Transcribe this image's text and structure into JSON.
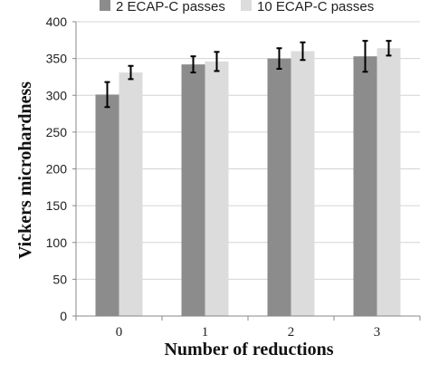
{
  "chart_data": {
    "type": "bar",
    "categories": [
      "0",
      "1",
      "2",
      "3"
    ],
    "series": [
      {
        "name": "2 ECAP-C passes",
        "values": [
          301,
          342,
          350,
          353
        ],
        "errors": [
          17,
          11,
          14,
          21
        ],
        "color": "#8c8c8c"
      },
      {
        "name": "10 ECAP-C passes",
        "values": [
          331,
          346,
          360,
          364
        ],
        "errors": [
          9,
          13,
          12,
          10
        ],
        "color": "#dcdcdc"
      }
    ],
    "xlabel": "Number of reductions",
    "ylabel": "Vickers microhardness",
    "ylim": [
      0,
      400
    ],
    "yticks": [
      "0",
      "50",
      "100",
      "150",
      "200",
      "250",
      "300",
      "350",
      "400"
    ],
    "grid": true,
    "legend": "top"
  }
}
